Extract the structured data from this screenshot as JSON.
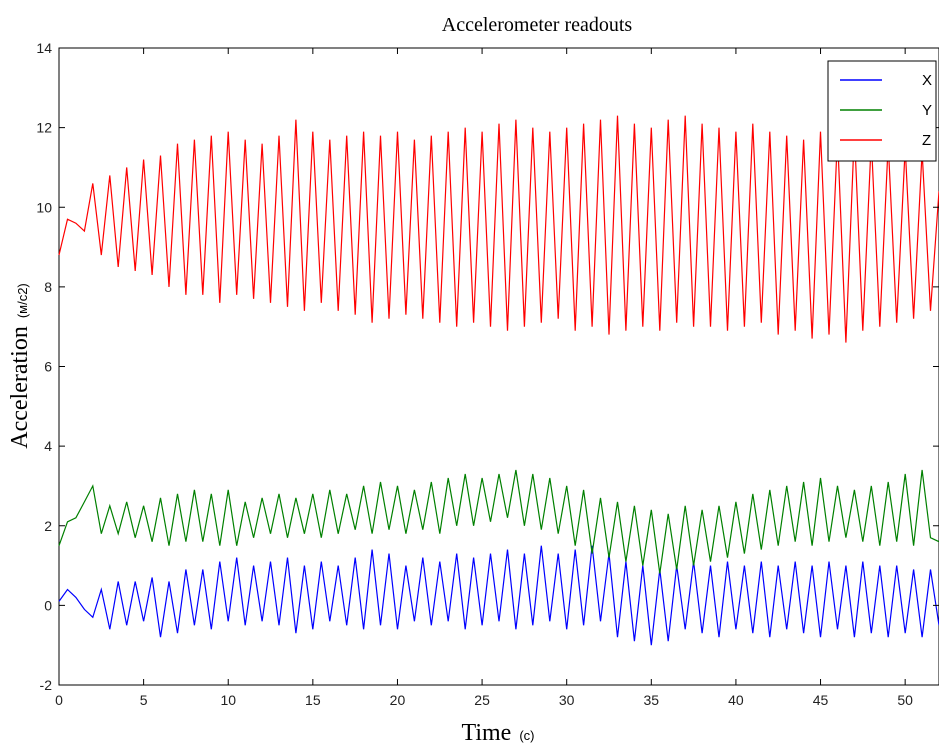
{
  "chart_data": {
    "type": "line",
    "title": "Accelerometer readouts",
    "xlabel": "Time",
    "xlabel_unit": "(c)",
    "ylabel": "Acceleration",
    "ylabel_unit": "(м/с2)",
    "xlim": [
      0,
      52
    ],
    "ylim": [
      -2,
      14
    ],
    "x_ticks": [
      "0",
      "5",
      "10",
      "15",
      "20",
      "25",
      "30",
      "35",
      "40",
      "45",
      "50"
    ],
    "y_ticks": [
      "-2",
      "0",
      "2",
      "4",
      "6",
      "8",
      "10",
      "12",
      "14"
    ],
    "grid": false,
    "legend_position": "top-right",
    "x": [
      0,
      0.5,
      1,
      1.5,
      2,
      2.5,
      3,
      3.5,
      4,
      4.5,
      5,
      5.5,
      6,
      6.5,
      7,
      7.5,
      8,
      8.5,
      9,
      9.5,
      10,
      10.5,
      11,
      11.5,
      12,
      12.5,
      13,
      13.5,
      14,
      14.5,
      15,
      15.5,
      16,
      16.5,
      17,
      17.5,
      18,
      18.5,
      19,
      19.5,
      20,
      20.5,
      21,
      21.5,
      22,
      22.5,
      23,
      23.5,
      24,
      24.5,
      25,
      25.5,
      26,
      26.5,
      27,
      27.5,
      28,
      28.5,
      29,
      29.5,
      30,
      30.5,
      31,
      31.5,
      32,
      32.5,
      33,
      33.5,
      34,
      34.5,
      35,
      35.5,
      36,
      36.5,
      37,
      37.5,
      38,
      38.5,
      39,
      39.5,
      40,
      40.5,
      41,
      41.5,
      42,
      42.5,
      43,
      43.5,
      44,
      44.5,
      45,
      45.5,
      46,
      46.5,
      47,
      47.5,
      48,
      48.5,
      49,
      49.5,
      50,
      50.5,
      51,
      51.5,
      52
    ],
    "series": [
      {
        "name": "X",
        "color": "#0000ff",
        "values": [
          0.1,
          0.4,
          0.2,
          -0.1,
          -0.3,
          0.4,
          -0.6,
          0.6,
          -0.5,
          0.6,
          -0.4,
          0.7,
          -0.8,
          0.6,
          -0.7,
          0.9,
          -0.5,
          0.9,
          -0.6,
          1.1,
          -0.4,
          1.2,
          -0.5,
          1.0,
          -0.4,
          1.1,
          -0.5,
          1.2,
          -0.7,
          1.0,
          -0.6,
          1.1,
          -0.4,
          1.0,
          -0.5,
          1.2,
          -0.6,
          1.4,
          -0.5,
          1.3,
          -0.6,
          1.0,
          -0.4,
          1.2,
          -0.5,
          1.1,
          -0.4,
          1.3,
          -0.6,
          1.2,
          -0.5,
          1.3,
          -0.4,
          1.4,
          -0.6,
          1.3,
          -0.5,
          1.5,
          -0.4,
          1.3,
          -0.6,
          1.4,
          -0.5,
          1.5,
          -0.4,
          1.3,
          -0.8,
          1.1,
          -0.9,
          1.0,
          -1.0,
          0.9,
          -0.9,
          1.0,
          -0.6,
          1.1,
          -0.7,
          1.0,
          -0.8,
          1.1,
          -0.6,
          1.0,
          -0.7,
          1.1,
          -0.8,
          1.0,
          -0.6,
          1.1,
          -0.7,
          1.0,
          -0.8,
          1.1,
          -0.6,
          1.0,
          -0.8,
          1.1,
          -0.7,
          1.0,
          -0.8,
          1.0,
          -0.7,
          0.9,
          -0.8,
          0.9,
          -0.5
        ]
      },
      {
        "name": "Y",
        "color": "#008000",
        "values": [
          1.5,
          2.1,
          2.2,
          2.6,
          3.0,
          1.8,
          2.5,
          1.8,
          2.6,
          1.7,
          2.5,
          1.6,
          2.7,
          1.5,
          2.8,
          1.6,
          2.9,
          1.6,
          2.8,
          1.5,
          2.9,
          1.5,
          2.6,
          1.7,
          2.7,
          1.8,
          2.8,
          1.7,
          2.7,
          1.8,
          2.8,
          1.7,
          2.9,
          1.8,
          2.8,
          1.9,
          3.0,
          1.8,
          3.1,
          1.9,
          3.0,
          1.8,
          2.9,
          1.9,
          3.1,
          1.8,
          3.2,
          2.0,
          3.3,
          2.0,
          3.2,
          2.1,
          3.3,
          2.2,
          3.4,
          2.0,
          3.3,
          1.9,
          3.2,
          1.8,
          3.0,
          1.5,
          2.9,
          1.3,
          2.7,
          1.2,
          2.6,
          1.1,
          2.5,
          1.0,
          2.4,
          0.8,
          2.3,
          0.9,
          2.5,
          1.0,
          2.4,
          1.1,
          2.5,
          1.2,
          2.6,
          1.3,
          2.8,
          1.4,
          2.9,
          1.5,
          3.0,
          1.6,
          3.1,
          1.5,
          3.2,
          1.6,
          3.0,
          1.7,
          2.9,
          1.6,
          3.0,
          1.5,
          3.1,
          1.6,
          3.3,
          1.5,
          3.4,
          1.7,
          1.6
        ]
      },
      {
        "name": "Z",
        "color": "#ff0000",
        "values": [
          8.8,
          9.7,
          9.6,
          9.4,
          10.6,
          8.8,
          10.8,
          8.5,
          11.0,
          8.4,
          11.2,
          8.3,
          11.3,
          8.0,
          11.6,
          7.8,
          11.7,
          7.8,
          11.8,
          7.6,
          11.9,
          7.8,
          11.7,
          7.7,
          11.6,
          7.6,
          11.8,
          7.5,
          12.2,
          7.4,
          11.9,
          7.6,
          11.7,
          7.4,
          11.8,
          7.3,
          11.9,
          7.1,
          11.8,
          7.2,
          11.9,
          7.3,
          11.7,
          7.2,
          11.8,
          7.1,
          11.9,
          7.0,
          12.0,
          7.1,
          11.9,
          7.0,
          12.1,
          6.9,
          12.2,
          7.0,
          12.0,
          7.1,
          11.9,
          7.2,
          12.0,
          6.9,
          12.1,
          7.0,
          12.2,
          6.8,
          12.3,
          6.9,
          12.1,
          7.0,
          12.0,
          6.9,
          12.2,
          7.1,
          12.3,
          7.0,
          12.1,
          7.0,
          12.0,
          6.9,
          11.9,
          7.0,
          12.1,
          7.1,
          11.9,
          6.8,
          11.8,
          6.9,
          11.7,
          6.7,
          11.9,
          6.8,
          11.8,
          6.6,
          11.9,
          6.9,
          11.7,
          7.0,
          11.6,
          7.1,
          11.5,
          7.2,
          11.4,
          7.4,
          10.4
        ]
      }
    ]
  }
}
